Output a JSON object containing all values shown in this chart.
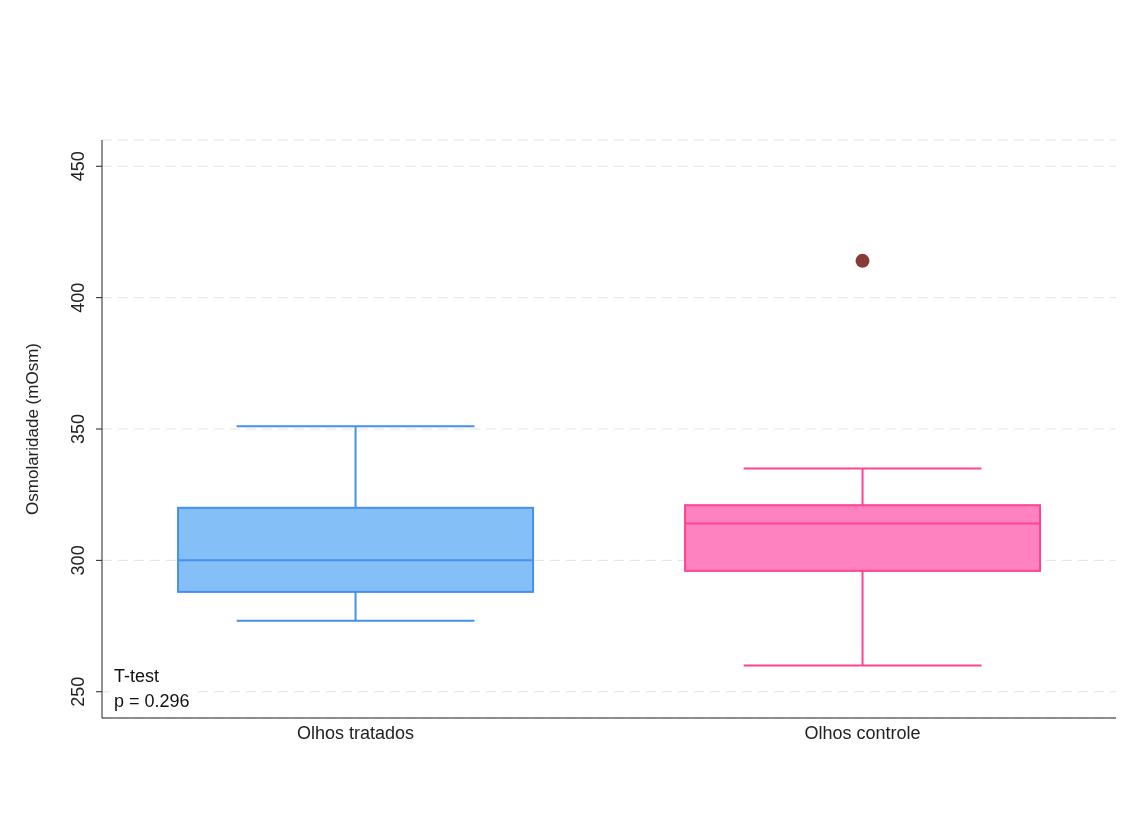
{
  "chart_data": {
    "type": "box",
    "ylabel": "Osmolaridade (mOsm)",
    "categories": [
      "Olhos tratados",
      "Olhos controle"
    ],
    "boxes": [
      {
        "low": 277,
        "q1": 288,
        "median": 300,
        "q3": 320,
        "high": 351
      },
      {
        "low": 260,
        "q1": 296,
        "median": 314,
        "q3": 321,
        "high": 335
      }
    ],
    "colors": [
      "#85bff7",
      "#ff82c0"
    ],
    "series": [
      {
        "type": "scatter",
        "x": [
          "Olhos controle"
        ],
        "values": [
          414
        ],
        "color": "#8b3a3a"
      }
    ],
    "ylim": [
      240,
      460
    ],
    "yticks": [
      250,
      300,
      350,
      400,
      450
    ],
    "grid": "y",
    "annotations": [
      "T-test",
      "p = 0.296"
    ]
  }
}
